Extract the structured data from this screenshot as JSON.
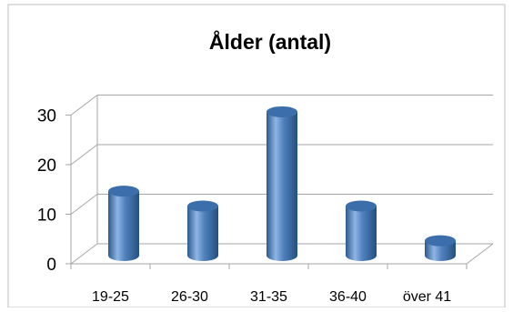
{
  "chart_data": {
    "type": "bar",
    "title": "Ålder (antal)",
    "categories": [
      "19-25",
      "26-30",
      "31-35",
      "36-40",
      "över 41"
    ],
    "values": [
      13,
      10,
      29,
      10,
      3
    ],
    "ylim": [
      0,
      30
    ],
    "yticks": [
      0,
      10,
      20,
      30
    ],
    "grid": true,
    "legend": "none",
    "style": "3d-cylinder",
    "colors": {
      "bar": "#4f81bd",
      "bar_dark": "#2c5a8f",
      "bar_light": "#8fb5e3",
      "bar_top": "#3b6eaa",
      "grid": "#a6a6a6",
      "frame": "#bfbfbf",
      "text": "#000000"
    }
  }
}
